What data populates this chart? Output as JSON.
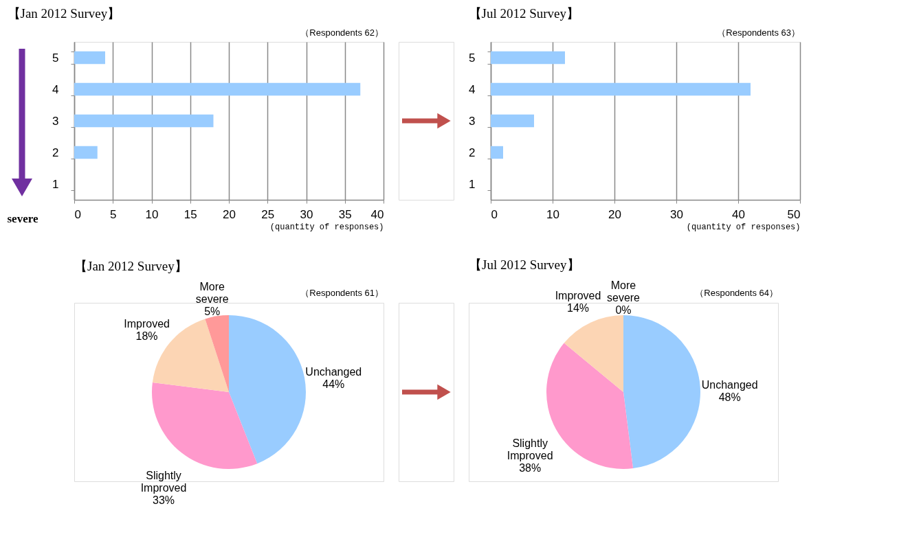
{
  "chart_data": [
    {
      "type": "bar",
      "orientation": "horizontal",
      "title": "【Jan 2012 Survey】",
      "xlabel": "(quantity of responses)",
      "categories": [
        "5",
        "4",
        "3",
        "2",
        "1"
      ],
      "values": [
        4,
        37,
        18,
        3,
        0
      ],
      "color": "#99ccff",
      "xlim": [
        0,
        40
      ],
      "xticks": [
        0,
        5,
        10,
        15,
        20,
        25,
        30,
        35,
        40
      ],
      "grid": "x",
      "annotations": [
        "（Respondents 62）",
        "severe"
      ]
    },
    {
      "type": "bar",
      "orientation": "horizontal",
      "title": "【Jul 2012 Survey】",
      "xlabel": "(quantity of responses)",
      "categories": [
        "5",
        "4",
        "3",
        "2",
        "1"
      ],
      "values": [
        12,
        42,
        7,
        2,
        0
      ],
      "color": "#99ccff",
      "xlim": [
        0,
        50
      ],
      "xticks": [
        0,
        10,
        20,
        30,
        40,
        50
      ],
      "grid": "x",
      "annotations": [
        "（Respondents 63）"
      ]
    },
    {
      "type": "pie",
      "title": "【Jan 2012 Survey】",
      "categories": [
        "Unchanged",
        "Slightly Improved",
        "Improved",
        "More severe"
      ],
      "values": [
        44,
        33,
        18,
        5
      ],
      "colors": [
        "#99ccff",
        "#ff99cc",
        "#fcd5b4",
        "#ff9999"
      ],
      "value_labels": [
        "44%",
        "33%",
        "18%",
        "5%"
      ],
      "annotations": [
        "（Respondents 61）"
      ]
    },
    {
      "type": "pie",
      "title": "【Jul 2012 Survey】",
      "categories": [
        "Unchanged",
        "Slightly Improved",
        "Improved",
        "More severe"
      ],
      "values": [
        48,
        38,
        14,
        0
      ],
      "colors": [
        "#99ccff",
        "#ff99cc",
        "#fcd5b4",
        "#ff9999"
      ],
      "value_labels": [
        "48%",
        "38%",
        "14%",
        "0%"
      ],
      "annotations": [
        "（Respondents 64）"
      ]
    }
  ]
}
